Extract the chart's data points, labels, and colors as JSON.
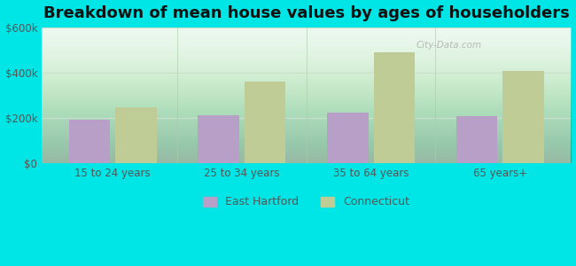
{
  "title": "Breakdown of mean house values by ages of householders",
  "categories": [
    "15 to 24 years",
    "25 to 34 years",
    "35 to 64 years",
    "65 years+"
  ],
  "east_hartford": [
    192000,
    213000,
    222000,
    208000
  ],
  "connecticut": [
    248000,
    362000,
    488000,
    408000
  ],
  "bar_color_eh": "#b89fc8",
  "bar_color_ct": "#bfcc96",
  "background_color": "#00e5e5",
  "ylim": [
    0,
    600000
  ],
  "yticks": [
    0,
    200000,
    400000,
    600000
  ],
  "ytick_labels": [
    "$0",
    "$200k",
    "$400k",
    "$600k"
  ],
  "legend_eh": "East Hartford",
  "legend_ct": "Connecticut",
  "bar_width": 0.32,
  "title_fontsize": 13,
  "tick_fontsize": 8.5,
  "legend_fontsize": 9,
  "separator_color": "#aaccaa",
  "grid_color": "#ccddcc",
  "text_color": "#555555"
}
